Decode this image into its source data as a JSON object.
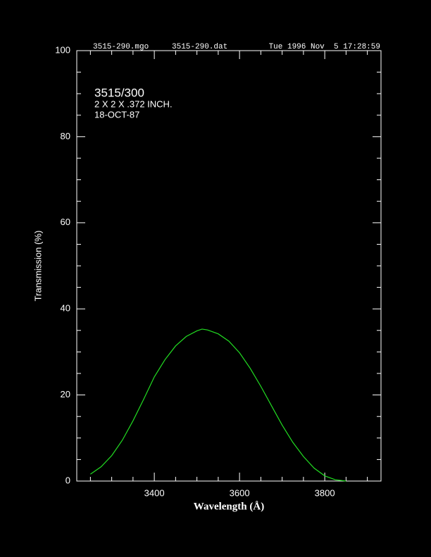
{
  "chart_data": {
    "type": "line",
    "header": [
      "3515-290.mgo",
      "3515-290.dat",
      "Tue 1996 Nov  5 17:28:59"
    ],
    "annotations": [
      "3515/300",
      "2 X 2 X .372 INCH.",
      "18-OCT-87"
    ],
    "xlabel": "Wavelength (Å)",
    "ylabel": "Transmission (%)",
    "xlim": [
      3218,
      3932
    ],
    "ylim": [
      0,
      100
    ],
    "xticks": [
      3400,
      3600,
      3800
    ],
    "yticks": [
      0,
      20,
      40,
      60,
      80,
      100
    ],
    "xminorticks": [
      3250,
      3300,
      3350,
      3450,
      3500,
      3550,
      3650,
      3700,
      3750,
      3850,
      3900
    ],
    "yminorticks": [
      5,
      10,
      15,
      25,
      30,
      35,
      45,
      50,
      55,
      65,
      70,
      75,
      85,
      90,
      95
    ],
    "series": [
      {
        "name": "3515/300",
        "color": "#22dd22",
        "x": [
          3250,
          3275,
          3300,
          3325,
          3350,
          3375,
          3400,
          3425,
          3450,
          3475,
          3500,
          3512,
          3525,
          3550,
          3575,
          3600,
          3625,
          3650,
          3675,
          3700,
          3725,
          3750,
          3775,
          3800,
          3825,
          3850
        ],
        "values": [
          1.6,
          3.3,
          5.9,
          9.5,
          14,
          19,
          24.2,
          28.2,
          31.4,
          33.6,
          34.9,
          35.3,
          35.1,
          34.2,
          32.5,
          29.8,
          26.2,
          22,
          17.5,
          13,
          9,
          5.7,
          3,
          1.2,
          0.3,
          0
        ]
      }
    ]
  }
}
